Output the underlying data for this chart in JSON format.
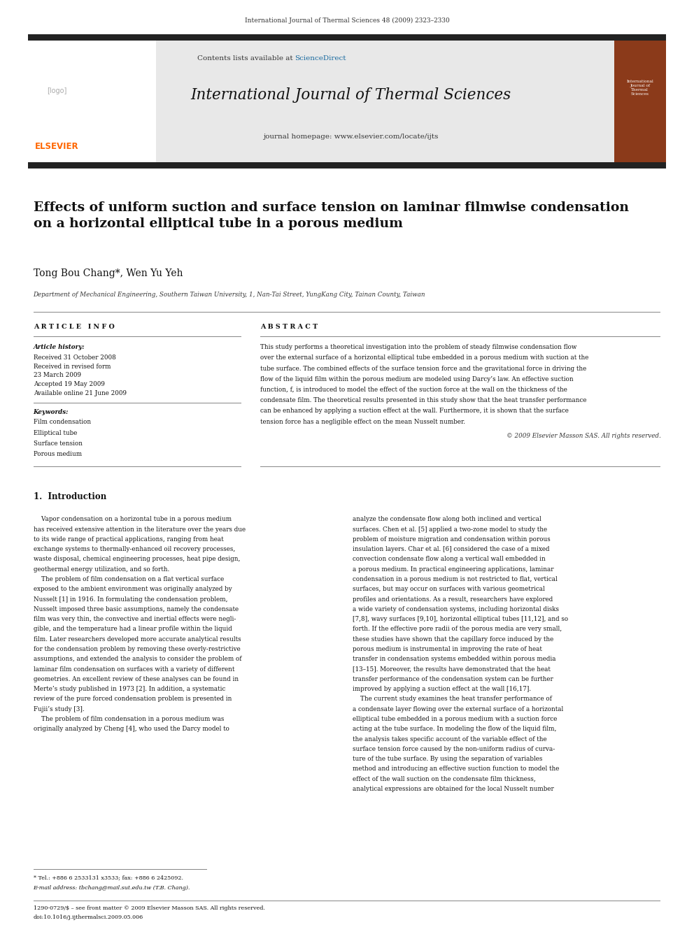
{
  "page_width": 9.92,
  "page_height": 13.23,
  "bg_color": "#ffffff",
  "top_journal_ref": "International Journal of Thermal Sciences 48 (2009) 2323–2330",
  "header_bg": "#e8e8e8",
  "header_contents": "Contents lists available at",
  "header_sciencedirect": "ScienceDirect",
  "header_sciencedirect_color": "#1a6ba0",
  "header_journal_name": "International Journal of Thermal Sciences",
  "header_homepage": "journal homepage: www.elsevier.com/locate/ijts",
  "elsevier_color": "#ff6600",
  "thick_bar_color": "#222222",
  "paper_title": "Effects of uniform suction and surface tension on laminar filmwise condensation\non a horizontal elliptical tube in a porous medium",
  "authors": "Tong Bou Chang*, Wen Yu Yeh",
  "affiliation": "Department of Mechanical Engineering, Southern Taiwan University, 1, Nan-Tai Street, YungKang City, Tainan County, Taiwan",
  "article_info_header": "A R T I C L E   I N F O",
  "abstract_header": "A B S T R A C T",
  "article_history_label": "Article history:",
  "received1": "Received 31 October 2008",
  "received2": "Received in revised form",
  "received2b": "23 March 2009",
  "accepted": "Accepted 19 May 2009",
  "available": "Available online 21 June 2009",
  "keywords_label": "Keywords:",
  "keywords": [
    "Film condensation",
    "Elliptical tube",
    "Surface tension",
    "Porous medium"
  ],
  "abstract_text": "This study performs a theoretical investigation into the problem of steady filmwise condensation flow over the external surface of a horizontal elliptical tube embedded in a porous medium with suction at the tube surface. The combined effects of the surface tension force and the gravitational force in driving the flow of the liquid film within the porous medium are modeled using Darcy’s law. An effective suction function, f, is introduced to model the effect of the suction force at the wall on the thickness of the condensate film. The theoretical results presented in this study show that the heat transfer performance can be enhanced by applying a suction effect at the wall. Furthermore, it is shown that the surface tension force has a negligible effect on the mean Nusselt number.",
  "copyright": "© 2009 Elsevier Masson SAS. All rights reserved.",
  "intro_header": "1.  Introduction",
  "footnote_star": "* Tel.: +886 6 2533131 x3533; fax: +886 6 2425092.",
  "footnote_email": "E-mail address: tbchang@mail.sut.edu.tw (T.B. Chang).",
  "issn": "1290-0729/$ – see front matter © 2009 Elsevier Masson SAS. All rights reserved.",
  "doi": "doi:10.1016/j.ijthermalsci.2009.05.006"
}
